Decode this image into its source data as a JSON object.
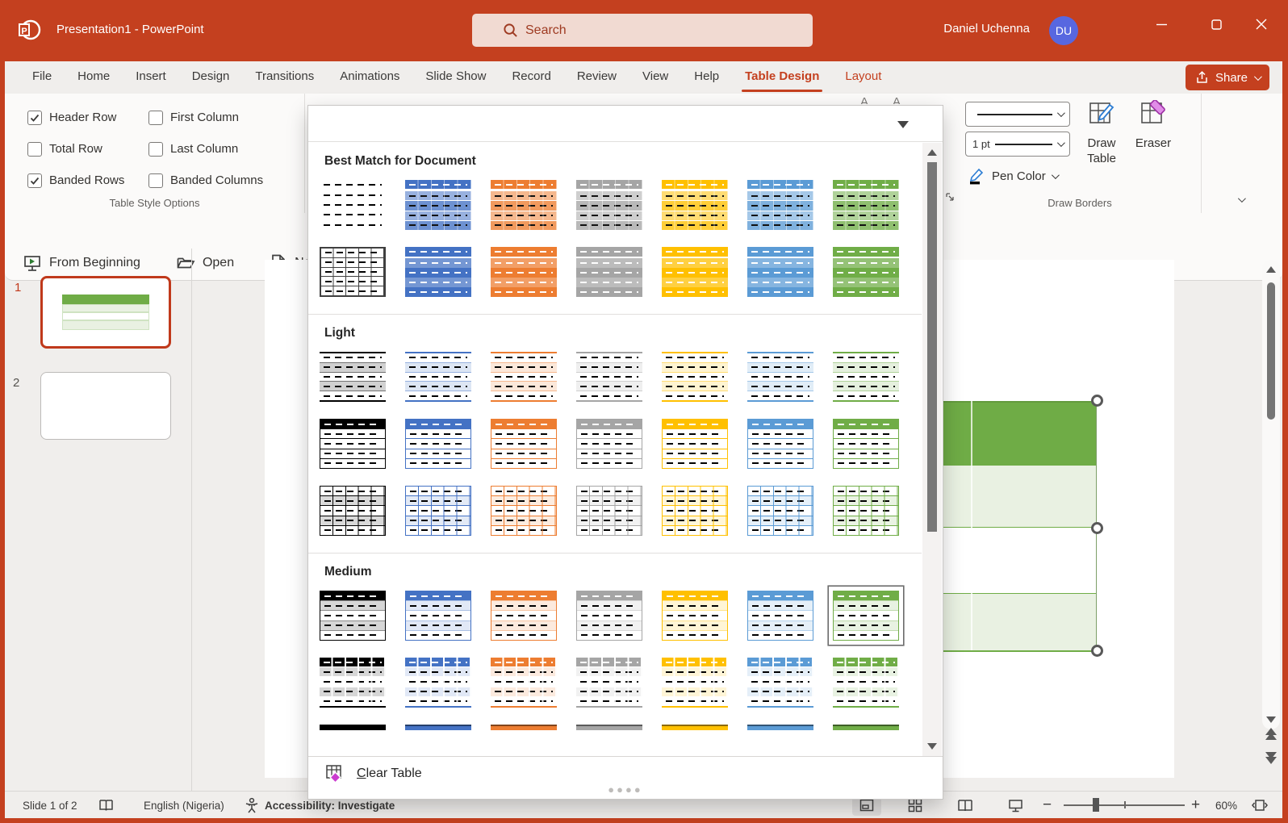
{
  "titlebar": {
    "title": "Presentation1  -  PowerPoint",
    "search_placeholder": "Search",
    "user_name": "Daniel Uchenna",
    "user_initials": "DU",
    "brand_color": "#C4401F"
  },
  "tabs": {
    "items": [
      {
        "label": "File"
      },
      {
        "label": "Home"
      },
      {
        "label": "Insert"
      },
      {
        "label": "Design"
      },
      {
        "label": "Transitions"
      },
      {
        "label": "Animations"
      },
      {
        "label": "Slide Show"
      },
      {
        "label": "Record"
      },
      {
        "label": "Review"
      },
      {
        "label": "View"
      },
      {
        "label": "Help"
      },
      {
        "label": "Table Design",
        "active": true,
        "contextual": true
      },
      {
        "label": "Layout",
        "contextual": true
      }
    ],
    "share_label": "Share"
  },
  "ribbon": {
    "table_style_options": {
      "label": "Table Style Options",
      "checkboxes": [
        {
          "label": "Header Row",
          "checked": true
        },
        {
          "label": "First Column",
          "checked": false
        },
        {
          "label": "Total Row",
          "checked": false
        },
        {
          "label": "Last Column",
          "checked": false
        },
        {
          "label": "Banded Rows",
          "checked": true
        },
        {
          "label": "Banded Columns",
          "checked": false
        }
      ]
    },
    "draw_borders": {
      "label": "Draw Borders",
      "pen_weight": "1 pt",
      "pen_color_label": "Pen Color",
      "draw_table_label": "Draw Table",
      "eraser_label": "Eraser"
    }
  },
  "quick_access": {
    "items": [
      "From Beginning",
      "Open",
      "New"
    ]
  },
  "slides_panel": {
    "slides": [
      {
        "number": "1",
        "selected": true
      },
      {
        "number": "2",
        "selected": false
      }
    ]
  },
  "gallery": {
    "clear_label": "Clear Table",
    "theme_colors": [
      "#000000",
      "#4472C4",
      "#ED7D31",
      "#A5A5A5",
      "#FFC000",
      "#5B9BD5",
      "#70AD47"
    ],
    "sections": [
      {
        "title": "Best Match for Document",
        "rows": [
          [
            {
              "variant": "plain"
            },
            {
              "variant": "bm1",
              "color": "#4472C4"
            },
            {
              "variant": "bm1",
              "color": "#ED7D31"
            },
            {
              "variant": "bm1",
              "color": "#A5A5A5"
            },
            {
              "variant": "bm1",
              "color": "#FFC000"
            },
            {
              "variant": "bm1",
              "color": "#5B9BD5"
            },
            {
              "variant": "bm1",
              "color": "#70AD47"
            }
          ],
          [
            {
              "variant": "plaingrid"
            },
            {
              "variant": "bm2",
              "color": "#4472C4"
            },
            {
              "variant": "bm2",
              "color": "#ED7D31"
            },
            {
              "variant": "bm2",
              "color": "#A5A5A5"
            },
            {
              "variant": "bm2",
              "color": "#FFC000"
            },
            {
              "variant": "bm2",
              "color": "#5B9BD5"
            },
            {
              "variant": "bm2",
              "color": "#70AD47"
            }
          ]
        ]
      },
      {
        "title": "Light",
        "rows": [
          [
            {
              "variant": "light1",
              "color": "#000000"
            },
            {
              "variant": "light1",
              "color": "#4472C4"
            },
            {
              "variant": "light1",
              "color": "#ED7D31"
            },
            {
              "variant": "light1",
              "color": "#A5A5A5"
            },
            {
              "variant": "light1",
              "color": "#FFC000"
            },
            {
              "variant": "light1",
              "color": "#5B9BD5"
            },
            {
              "variant": "light1",
              "color": "#70AD47"
            }
          ],
          [
            {
              "variant": "light2",
              "color": "#000000"
            },
            {
              "variant": "light2",
              "color": "#4472C4"
            },
            {
              "variant": "light2",
              "color": "#ED7D31"
            },
            {
              "variant": "light2",
              "color": "#A5A5A5"
            },
            {
              "variant": "light2",
              "color": "#FFC000"
            },
            {
              "variant": "light2",
              "color": "#5B9BD5"
            },
            {
              "variant": "light2",
              "color": "#70AD47"
            }
          ],
          [
            {
              "variant": "light3",
              "color": "#000000"
            },
            {
              "variant": "light3",
              "color": "#4472C4"
            },
            {
              "variant": "light3",
              "color": "#ED7D31"
            },
            {
              "variant": "light3",
              "color": "#A5A5A5"
            },
            {
              "variant": "light3",
              "color": "#FFC000"
            },
            {
              "variant": "light3",
              "color": "#5B9BD5"
            },
            {
              "variant": "light3",
              "color": "#70AD47"
            }
          ]
        ]
      },
      {
        "title": "Medium",
        "rows": [
          [
            {
              "variant": "med1",
              "color": "#000000"
            },
            {
              "variant": "med1",
              "color": "#4472C4"
            },
            {
              "variant": "med1",
              "color": "#ED7D31"
            },
            {
              "variant": "med1",
              "color": "#A5A5A5"
            },
            {
              "variant": "med1",
              "color": "#FFC000"
            },
            {
              "variant": "med1",
              "color": "#5B9BD5"
            },
            {
              "variant": "med1",
              "color": "#70AD47",
              "selected": true
            }
          ],
          [
            {
              "variant": "med2",
              "color": "#000000"
            },
            {
              "variant": "med2",
              "color": "#4472C4"
            },
            {
              "variant": "med2",
              "color": "#ED7D31"
            },
            {
              "variant": "med2",
              "color": "#A5A5A5"
            },
            {
              "variant": "med2",
              "color": "#FFC000"
            },
            {
              "variant": "med2",
              "color": "#5B9BD5"
            },
            {
              "variant": "med2",
              "color": "#70AD47"
            }
          ]
        ],
        "partial_row_colors": [
          "#000000",
          "#4472C4",
          "#ED7D31",
          "#A5A5A5",
          "#FFC000",
          "#5B9BD5",
          "#70AD47"
        ]
      }
    ]
  },
  "canvas_table": {
    "header_color": "#70AD47",
    "band_color": "#E9F1E2"
  },
  "statusbar": {
    "slide_indicator": "Slide 1 of 2",
    "language": "English (Nigeria)",
    "accessibility": "Accessibility: Investigate",
    "zoom_level": "60%"
  }
}
